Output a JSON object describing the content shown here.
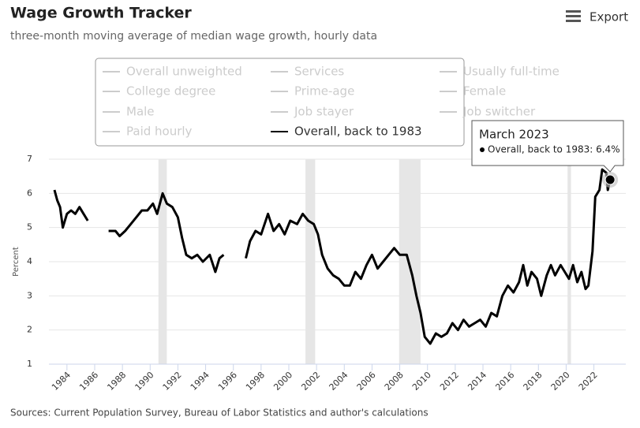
{
  "chart_data": {
    "type": "line",
    "title": "Wage Growth Tracker",
    "subtitle": "three-month moving average of median wage growth, hourly data",
    "export_label": "Export",
    "y_label": "Percent",
    "source": "Sources: Current Population Survey, Bureau of Labor Statistics and author's calculations",
    "inactive_series": [
      "Overall unweighted",
      "Services",
      "Usually full-time",
      "College degree",
      "Prime-age",
      "Female",
      "Male",
      "Job stayer",
      "Job switcher",
      "Paid hourly"
    ],
    "inactive_color": "#cccccc",
    "x": [
      1983.1,
      1983.3,
      1983.5,
      1983.7,
      1984.0,
      1984.3,
      1984.6,
      1984.9,
      1985.2,
      1985.5,
      1986.0,
      1987.0,
      1987.5,
      1987.8,
      1988.2,
      1988.6,
      1989.0,
      1989.4,
      1989.8,
      1990.2,
      1990.5,
      1990.9,
      1991.2,
      1991.6,
      1992.0,
      1992.3,
      1992.6,
      1993.0,
      1993.4,
      1993.8,
      1994.3,
      1994.7,
      1995.0,
      1995.3,
      1996.0,
      1996.9,
      1997.2,
      1997.6,
      1998.0,
      1998.5,
      1998.9,
      1999.3,
      1999.7,
      2000.1,
      2000.6,
      2001.0,
      2001.4,
      2001.8,
      2002.1,
      2002.4,
      2002.8,
      2003.2,
      2003.6,
      2004.0,
      2004.4,
      2004.8,
      2005.2,
      2005.6,
      2006.0,
      2006.4,
      2006.8,
      2007.2,
      2007.6,
      2008.0,
      2008.5,
      2008.9,
      2009.2,
      2009.5,
      2009.8,
      2010.2,
      2010.6,
      2011.0,
      2011.4,
      2011.8,
      2012.2,
      2012.6,
      2013.0,
      2013.4,
      2013.8,
      2014.2,
      2014.6,
      2015.0,
      2015.4,
      2015.8,
      2016.2,
      2016.6,
      2016.9,
      2017.2,
      2017.5,
      2017.9,
      2018.2,
      2018.6,
      2018.9,
      2019.2,
      2019.6,
      2019.9,
      2020.2,
      2020.5,
      2020.8,
      2021.1,
      2021.4,
      2021.6,
      2021.9,
      2022.1,
      2022.4,
      2022.6,
      2022.9,
      2023.0,
      2023.17
    ],
    "series": [
      {
        "name": "Overall, back to 1983",
        "color": "#000000",
        "values": [
          6.1,
          5.8,
          5.6,
          5.0,
          5.4,
          5.5,
          5.4,
          5.6,
          5.4,
          5.2,
          null,
          4.9,
          4.9,
          4.75,
          4.9,
          5.1,
          5.3,
          5.5,
          5.5,
          5.7,
          5.4,
          6.0,
          5.7,
          5.6,
          5.3,
          4.7,
          4.2,
          4.1,
          4.2,
          4.0,
          4.2,
          3.7,
          4.1,
          4.2,
          null,
          4.1,
          4.6,
          4.9,
          4.8,
          5.4,
          4.9,
          5.1,
          4.8,
          5.2,
          5.1,
          5.4,
          5.2,
          5.1,
          4.8,
          4.2,
          3.8,
          3.6,
          3.5,
          3.3,
          3.3,
          3.7,
          3.5,
          3.9,
          4.2,
          3.8,
          4.0,
          4.2,
          4.4,
          4.2,
          4.2,
          3.6,
          3.0,
          2.5,
          1.8,
          1.6,
          1.9,
          1.8,
          1.9,
          2.2,
          2.0,
          2.3,
          2.1,
          2.2,
          2.3,
          2.1,
          2.5,
          2.4,
          3.0,
          3.3,
          3.1,
          3.4,
          3.9,
          3.3,
          3.7,
          3.5,
          3.0,
          3.6,
          3.9,
          3.6,
          3.9,
          3.7,
          3.5,
          3.9,
          3.4,
          3.7,
          3.2,
          3.3,
          4.3,
          5.9,
          6.1,
          6.7,
          6.6,
          6.1,
          6.4
        ]
      }
    ],
    "recessions": [
      [
        1990.6,
        1991.2
      ],
      [
        2001.2,
        2001.9
      ],
      [
        2007.95,
        2009.5
      ],
      [
        2020.1,
        2020.35
      ]
    ],
    "recession_color": "#e6e6e6",
    "xlim": [
      1982.7,
      2024.3
    ],
    "xticks": [
      1984,
      1986,
      1988,
      1990,
      1992,
      1994,
      1996,
      1998,
      2000,
      2002,
      2004,
      2006,
      2008,
      2010,
      2012,
      2014,
      2016,
      2018,
      2020,
      2022
    ],
    "ylim": [
      1,
      7
    ],
    "yticks": [
      1,
      2,
      3,
      4,
      5,
      6,
      7
    ],
    "grid": true,
    "tooltip": {
      "title": "March 2023",
      "label": "Overall, back to 1983: 6.4%"
    }
  }
}
